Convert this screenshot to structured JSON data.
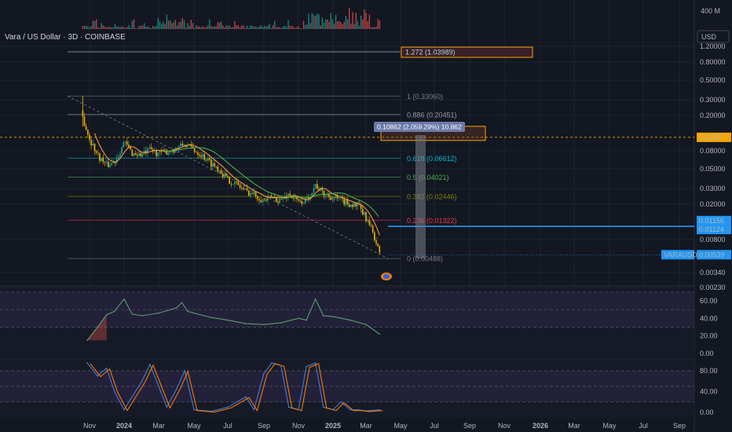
{
  "title": "Vara / US Dollar · 3D · COINBASE",
  "currency_button": "USD",
  "volume_label": "400 M",
  "ruler_label": "0.10862 (2,059.29%) 10,862",
  "colors": {
    "background": "#131722",
    "candle_up": "#26a69a",
    "candle_down": "#f0b400",
    "fib_orange_box": "#f7a600",
    "price_badge": "#2196f3",
    "rsi_line": "#5b9c6b",
    "stoch_k": "#4a78d6",
    "stoch_d": "#f57c00"
  },
  "chart_data": [
    {
      "type": "candlestick",
      "name": "price",
      "symbol": "VARAUSD",
      "scale": "log",
      "x_ticks": [
        "Nov",
        "2024",
        "Mar",
        "May",
        "Jul",
        "Sep",
        "Nov",
        "2025",
        "Mar",
        "May",
        "Jul",
        "Sep",
        "Nov",
        "2026",
        "Mar",
        "May",
        "Jul",
        "Sep"
      ],
      "y_ticks": [
        "1.20000",
        "0.80000",
        "0.50000",
        "0.30000",
        "0.20000",
        "0.08000",
        "0.05000",
        "0.03000",
        "0.02000",
        "0.00800",
        "0.00340",
        "0.00230"
      ],
      "approx_close": {
        "dates": [
          "2023-10-20",
          "2023-11-01",
          "2023-11-15",
          "2023-12-01",
          "2023-12-15",
          "2024-01-01",
          "2024-01-15",
          "2024-02-01",
          "2024-02-15",
          "2024-03-01",
          "2024-03-15",
          "2024-04-01",
          "2024-04-15",
          "2024-05-01",
          "2024-05-15",
          "2024-06-01",
          "2024-06-15",
          "2024-07-01",
          "2024-07-15",
          "2024-08-01",
          "2024-08-15",
          "2024-09-01",
          "2024-09-15",
          "2024-10-01",
          "2024-10-15",
          "2024-11-01",
          "2024-11-15",
          "2024-12-01",
          "2024-12-15",
          "2025-01-01",
          "2025-01-15",
          "2025-02-01",
          "2025-02-15",
          "2025-03-01",
          "2025-03-15",
          "2025-03-25"
        ],
        "values": [
          0.19,
          0.11,
          0.072,
          0.055,
          0.06,
          0.1,
          0.075,
          0.072,
          0.082,
          0.075,
          0.078,
          0.085,
          0.095,
          0.082,
          0.072,
          0.058,
          0.05,
          0.038,
          0.034,
          0.028,
          0.026,
          0.022,
          0.024,
          0.022,
          0.026,
          0.021,
          0.022,
          0.033,
          0.026,
          0.024,
          0.022,
          0.02,
          0.019,
          0.014,
          0.009,
          0.0054
        ]
      },
      "fib_levels": [
        {
          "label": "1.272 (1.03989)",
          "value": 1.03989
        },
        {
          "label": "1 (0.33060)",
          "value": 0.3306
        },
        {
          "label": "0.886 (0.20451)",
          "value": 0.20451
        },
        {
          "label": "0.618 (0.06612)",
          "value": 0.06612
        },
        {
          "label": "0.5 (0.04021)",
          "value": 0.04021
        },
        {
          "label": "0.382 (0.02446)",
          "value": 0.02446
        },
        {
          "label": "0.236 (0.01322)",
          "value": 0.01322
        },
        {
          "label": "0 (0.00488)",
          "value": 0.00488
        }
      ],
      "price_badges": [
        {
          "label": "0.11327",
          "value": 0.11327
        },
        {
          "label": "0.01156",
          "value": 0.01156
        },
        {
          "label": "0.01124",
          "value": 0.01124
        },
        {
          "label": "0.00539",
          "value": 0.00539
        }
      ],
      "symbol_label": "VARAUSD"
    },
    {
      "type": "line",
      "name": "RSI",
      "y_ticks": [
        "60.00",
        "40.00",
        "20.00",
        "0.00"
      ],
      "ylim": [
        0,
        100
      ],
      "x": [
        "2023-10-28",
        "2023-11-15",
        "2023-12-01",
        "2023-12-15",
        "2024-01-01",
        "2024-01-15",
        "2024-02-01",
        "2024-03-01",
        "2024-04-01",
        "2024-04-10",
        "2024-04-20",
        "2024-05-01",
        "2024-06-01",
        "2024-07-01",
        "2024-08-01",
        "2024-09-01",
        "2024-10-01",
        "2024-11-01",
        "2024-11-15",
        "2024-12-01",
        "2024-12-15",
        "2025-01-01",
        "2025-02-01",
        "2025-03-01",
        "2025-03-25"
      ],
      "values": [
        15,
        30,
        44,
        48,
        62,
        45,
        43,
        46,
        52,
        58,
        48,
        46,
        41,
        38,
        34,
        33,
        35,
        40,
        38,
        62,
        43,
        42,
        38,
        33,
        22
      ]
    },
    {
      "type": "line",
      "name": "Stoch RSI",
      "y_ticks": [
        "80.00",
        "40.00",
        "0.00"
      ],
      "ylim": [
        0,
        100
      ],
      "x": [
        "2023-10-28",
        "2023-11-15",
        "2023-12-01",
        "2023-12-15",
        "2024-01-01",
        "2024-01-15",
        "2024-02-01",
        "2024-02-15",
        "2024-03-01",
        "2024-03-15",
        "2024-04-01",
        "2024-04-15",
        "2024-05-01",
        "2024-06-01",
        "2024-07-01",
        "2024-08-01",
        "2024-08-15",
        "2024-09-01",
        "2024-09-15",
        "2024-10-01",
        "2024-10-15",
        "2024-11-01",
        "2024-11-15",
        "2024-12-01",
        "2024-12-15",
        "2025-01-01",
        "2025-01-15",
        "2025-02-01",
        "2025-02-15",
        "2025-03-01",
        "2025-03-25"
      ],
      "values": [
        95,
        70,
        85,
        40,
        5,
        30,
        60,
        92,
        50,
        10,
        45,
        80,
        5,
        2,
        10,
        30,
        5,
        75,
        95,
        90,
        10,
        5,
        88,
        95,
        10,
        5,
        20,
        5,
        5,
        3,
        5
      ]
    }
  ]
}
